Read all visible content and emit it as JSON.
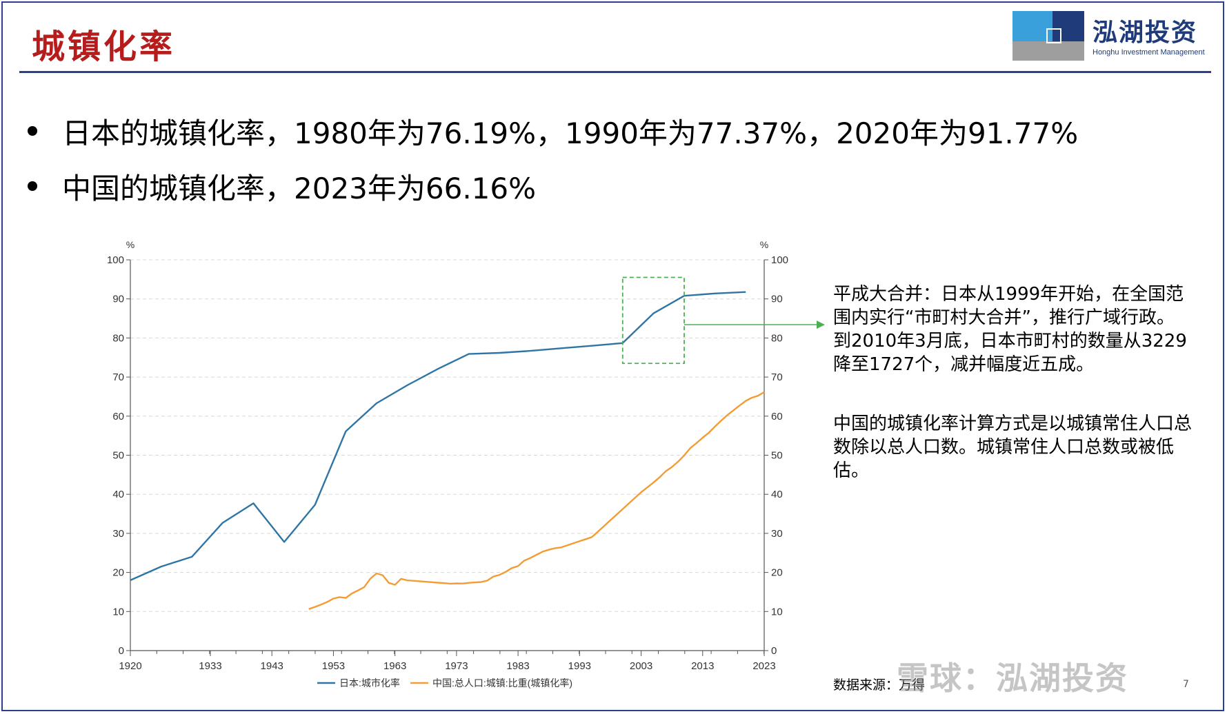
{
  "slide": {
    "title": "城镇化率",
    "logo_text": "泓湖投资",
    "logo_sub": "Honghu Investment Management",
    "bullets": [
      "日本的城镇化率，1980年为76.19%，1990年为77.37%，2020年为91.77%",
      "中国的城镇化率，2023年为66.16%"
    ],
    "notes": [
      "平成大合并：日本从1999年开始，在全国范围内实行“市町村大合并”，推行广域行政。到2010年3月底，日本市町村的数量从3229降至1727个，减并幅度近五成。",
      "中国的城镇化率计算方式是以城镇常住人口总数除以总人口数。城镇常住人口总数或被低估。"
    ],
    "source": "数据来源：万得",
    "watermark": "雪球：泓湖投资",
    "page_number": "7"
  },
  "colors": {
    "japan": "#2e75a6",
    "china": "#f39c33",
    "highlight": "#4caf50",
    "title": "#b71c1c",
    "rule": "#2a3f8f"
  },
  "chart_data": {
    "type": "line",
    "y_unit_left": "%",
    "y_unit_right": "%",
    "xlim": [
      1920,
      2023
    ],
    "ylim": [
      0,
      100
    ],
    "x_ticks": [
      1920,
      1933,
      1943,
      1953,
      1963,
      1973,
      1983,
      1993,
      2003,
      2013,
      2023
    ],
    "y_ticks": [
      0,
      10,
      20,
      30,
      40,
      50,
      60,
      70,
      80,
      90,
      100
    ],
    "grid": "horizontal-dashed",
    "legend": "bottom",
    "highlight_box": {
      "x": [
        2000,
        2010
      ],
      "y": [
        73.5,
        95.5
      ]
    },
    "series": [
      {
        "name": "日本:城市化率",
        "color": "#2e75a6",
        "x": [
          1920,
          1925,
          1930,
          1935,
          1940,
          1945,
          1950,
          1955,
          1960,
          1965,
          1970,
          1975,
          1980,
          1985,
          1990,
          1995,
          2000,
          2005,
          2010,
          2015,
          2020
        ],
        "y": [
          18.0,
          21.5,
          24.0,
          32.7,
          37.7,
          27.8,
          37.3,
          56.1,
          63.3,
          67.9,
          72.1,
          75.9,
          76.19,
          76.7,
          77.37,
          78.0,
          78.7,
          86.3,
          90.8,
          91.4,
          91.77
        ]
      },
      {
        "name": "中国:总人口:城镇:比重(城镇化率)",
        "color": "#f39c33",
        "x": [
          1949,
          1950,
          1951,
          1952,
          1953,
          1954,
          1955,
          1956,
          1957,
          1958,
          1959,
          1960,
          1961,
          1962,
          1963,
          1964,
          1965,
          1966,
          1967,
          1968,
          1969,
          1970,
          1971,
          1972,
          1973,
          1974,
          1975,
          1976,
          1977,
          1978,
          1979,
          1980,
          1981,
          1982,
          1983,
          1984,
          1985,
          1986,
          1987,
          1988,
          1989,
          1990,
          1991,
          1992,
          1993,
          1994,
          1995,
          1996,
          1997,
          1998,
          1999,
          2000,
          2001,
          2002,
          2003,
          2004,
          2005,
          2006,
          2007,
          2008,
          2009,
          2010,
          2011,
          2012,
          2013,
          2014,
          2015,
          2016,
          2017,
          2018,
          2019,
          2020,
          2021,
          2022,
          2023
        ],
        "y": [
          10.64,
          11.18,
          11.78,
          12.46,
          13.31,
          13.69,
          13.48,
          14.62,
          15.39,
          16.25,
          18.41,
          19.75,
          19.29,
          17.33,
          16.84,
          18.37,
          17.98,
          17.86,
          17.74,
          17.62,
          17.5,
          17.38,
          17.26,
          17.13,
          17.2,
          17.16,
          17.34,
          17.44,
          17.55,
          17.92,
          18.96,
          19.39,
          20.16,
          21.13,
          21.62,
          23.01,
          23.71,
          24.52,
          25.32,
          25.81,
          26.21,
          26.41,
          26.94,
          27.46,
          27.99,
          28.51,
          29.04,
          30.48,
          31.91,
          33.35,
          34.78,
          36.22,
          37.66,
          39.09,
          40.53,
          41.76,
          42.99,
          44.34,
          45.89,
          46.99,
          48.34,
          49.95,
          51.83,
          53.1,
          54.49,
          55.75,
          57.33,
          58.84,
          60.24,
          61.5,
          62.71,
          63.89,
          64.72,
          65.22,
          66.16
        ]
      }
    ]
  }
}
